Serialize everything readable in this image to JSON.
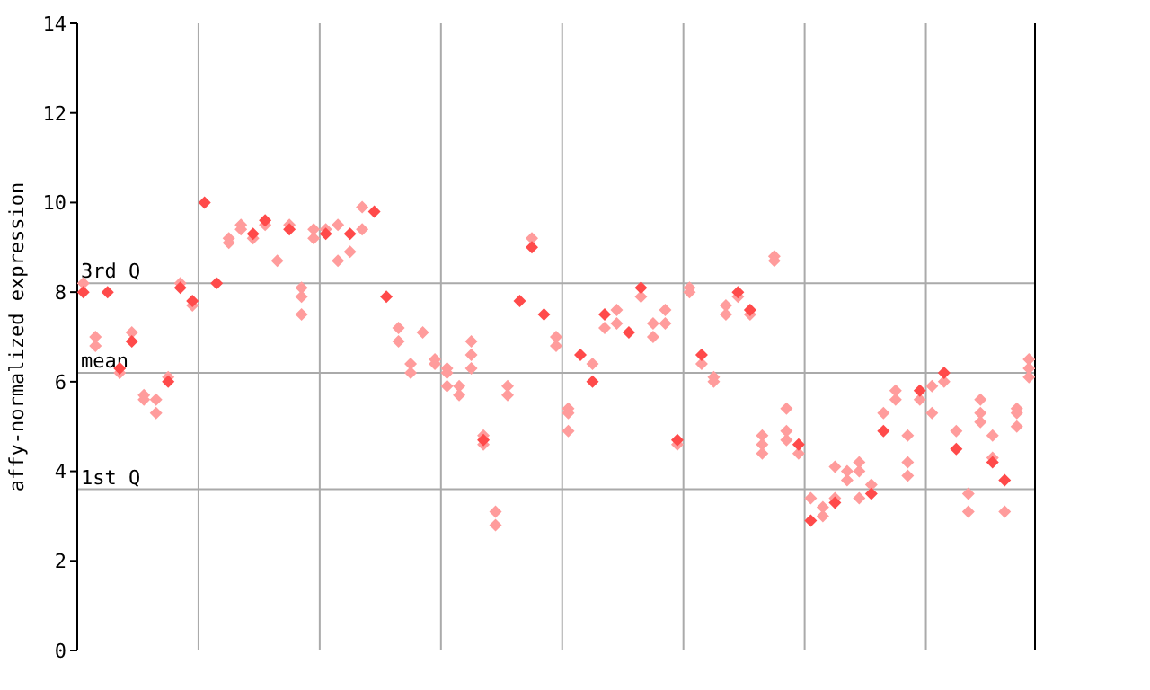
{
  "chart_data": {
    "type": "scatter",
    "ylabel": "affy-normalized expression",
    "ylim": [
      0,
      14
    ],
    "yticks": [
      0,
      2,
      4,
      6,
      8,
      10,
      12,
      14
    ],
    "grid": "x",
    "tick_labels": "y",
    "marker": "diamond",
    "legend": false,
    "categories": [
      null,
      null,
      null,
      null,
      null,
      null,
      null,
      null,
      null,
      null,
      null,
      null,
      null,
      null,
      null,
      null,
      null,
      null,
      null,
      null,
      null,
      null,
      null,
      null,
      null,
      null,
      null,
      null,
      null,
      null,
      null,
      null,
      null,
      null,
      null,
      null,
      null,
      null,
      null,
      null,
      null,
      null,
      null,
      null,
      null,
      null,
      null,
      null,
      null,
      null,
      null,
      null,
      null,
      null,
      null,
      null,
      null,
      null,
      null,
      null,
      null,
      null,
      null,
      null,
      null,
      null,
      null,
      null,
      null,
      null,
      null,
      null,
      null,
      null,
      null,
      null,
      null,
      null,
      null
    ],
    "ref_lines": [
      {
        "axis": "y",
        "value": 8.2,
        "label": "3rd Q",
        "color": "#aaaaaa"
      },
      {
        "axis": "y",
        "value": 6.2,
        "label": "mean",
        "color": "#aaaaaa"
      },
      {
        "axis": "y",
        "value": 3.6,
        "label": "1st Q",
        "color": "#aaaaaa"
      }
    ],
    "series": [
      {
        "color": "#ff9c9c",
        "values": [
          8.2,
          7.0,
          null,
          6.2,
          7.1,
          5.7,
          5.6,
          6.1,
          8.2,
          7.7,
          null,
          null,
          9.2,
          9.5,
          9.2,
          9.5,
          8.7,
          9.5,
          8.1,
          9.4,
          9.4,
          9.5,
          8.9,
          9.9,
          null,
          null,
          7.2,
          6.4,
          7.1,
          6.5,
          6.3,
          5.9,
          6.9,
          4.8,
          3.1,
          5.9,
          null,
          9.2,
          null,
          7.0,
          5.4,
          null,
          6.4,
          7.2,
          7.6,
          null,
          7.9,
          7.3,
          7.6,
          4.6,
          8.1,
          6.4,
          6.1,
          7.7,
          7.9,
          7.5,
          4.8,
          8.8,
          5.4,
          4.4,
          3.4,
          3.2,
          4.1,
          4.0,
          4.2,
          3.7,
          5.3,
          5.8,
          4.8,
          5.6,
          5.9,
          6.0,
          4.9,
          3.5,
          5.6,
          4.8,
          3.1,
          5.4,
          6.5
        ]
      },
      {
        "color": "#ff9c9c",
        "values": [
          null,
          6.8,
          null,
          null,
          null,
          5.6,
          5.3,
          null,
          null,
          null,
          null,
          null,
          9.1,
          9.4,
          null,
          null,
          null,
          null,
          7.9,
          9.2,
          null,
          8.7,
          null,
          9.4,
          null,
          null,
          6.9,
          6.2,
          null,
          6.4,
          6.2,
          5.7,
          6.6,
          4.6,
          2.8,
          5.7,
          null,
          null,
          null,
          6.8,
          5.3,
          null,
          null,
          null,
          7.3,
          null,
          null,
          7.0,
          7.3,
          null,
          8.0,
          null,
          6.0,
          7.5,
          null,
          null,
          4.6,
          8.7,
          4.9,
          null,
          null,
          3.0,
          3.4,
          3.8,
          4.0,
          null,
          null,
          5.6,
          4.2,
          null,
          5.3,
          null,
          null,
          3.1,
          5.3,
          4.3,
          null,
          5.3,
          6.3
        ]
      },
      {
        "color": "#ff9c9c",
        "values": [
          null,
          null,
          null,
          null,
          null,
          null,
          null,
          null,
          null,
          null,
          null,
          null,
          null,
          null,
          null,
          null,
          null,
          null,
          7.5,
          null,
          null,
          null,
          null,
          null,
          null,
          null,
          null,
          null,
          null,
          null,
          5.9,
          null,
          6.3,
          null,
          null,
          null,
          null,
          null,
          null,
          null,
          4.9,
          null,
          null,
          null,
          null,
          null,
          null,
          null,
          null,
          null,
          null,
          null,
          null,
          null,
          null,
          null,
          4.4,
          null,
          4.7,
          null,
          null,
          null,
          null,
          null,
          3.4,
          null,
          null,
          null,
          3.9,
          null,
          null,
          null,
          null,
          null,
          5.1,
          null,
          null,
          5.0,
          6.1
        ]
      },
      {
        "color": "#ff4a4a",
        "values": [
          8.0,
          null,
          8.0,
          6.3,
          6.9,
          null,
          null,
          6.0,
          8.1,
          7.8,
          10.0,
          8.2,
          null,
          null,
          9.3,
          9.6,
          null,
          9.4,
          null,
          null,
          9.3,
          null,
          9.3,
          null,
          9.8,
          7.9,
          null,
          null,
          null,
          null,
          null,
          null,
          null,
          4.7,
          null,
          null,
          7.8,
          9.0,
          7.5,
          null,
          null,
          6.6,
          6.0,
          7.5,
          null,
          7.1,
          8.1,
          null,
          null,
          4.7,
          null,
          6.6,
          null,
          null,
          8.0,
          7.6,
          null,
          null,
          null,
          4.6,
          2.9,
          null,
          3.3,
          null,
          null,
          3.5,
          4.9,
          null,
          null,
          5.8,
          null,
          6.2,
          4.5,
          null,
          null,
          4.2,
          3.8,
          null,
          null
        ]
      }
    ]
  }
}
